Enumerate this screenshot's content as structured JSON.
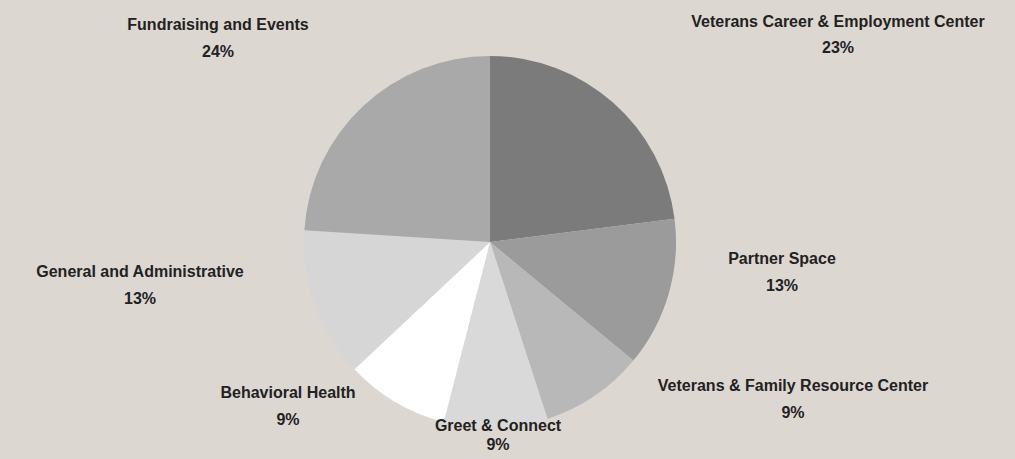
{
  "chart_data": {
    "type": "pie",
    "categories": [
      "Veterans Career & Employment Center",
      "Partner Space",
      "Veterans & Family Resource Center",
      "Greet & Connect",
      "Behavioral Health",
      "General and Administrative",
      "Fundraising and Events"
    ],
    "values": [
      23,
      13,
      9,
      9,
      9,
      13,
      24
    ],
    "value_labels": [
      "23%",
      "13%",
      "9%",
      "9%",
      "9%",
      "13%",
      "24%"
    ],
    "colors": [
      "#7b7b7b",
      "#9b9b9b",
      "#b9b8b8",
      "#dad9d9",
      "#ffffff",
      "#d6d6d6",
      "#a9a9a9"
    ],
    "data_labels": true
  }
}
